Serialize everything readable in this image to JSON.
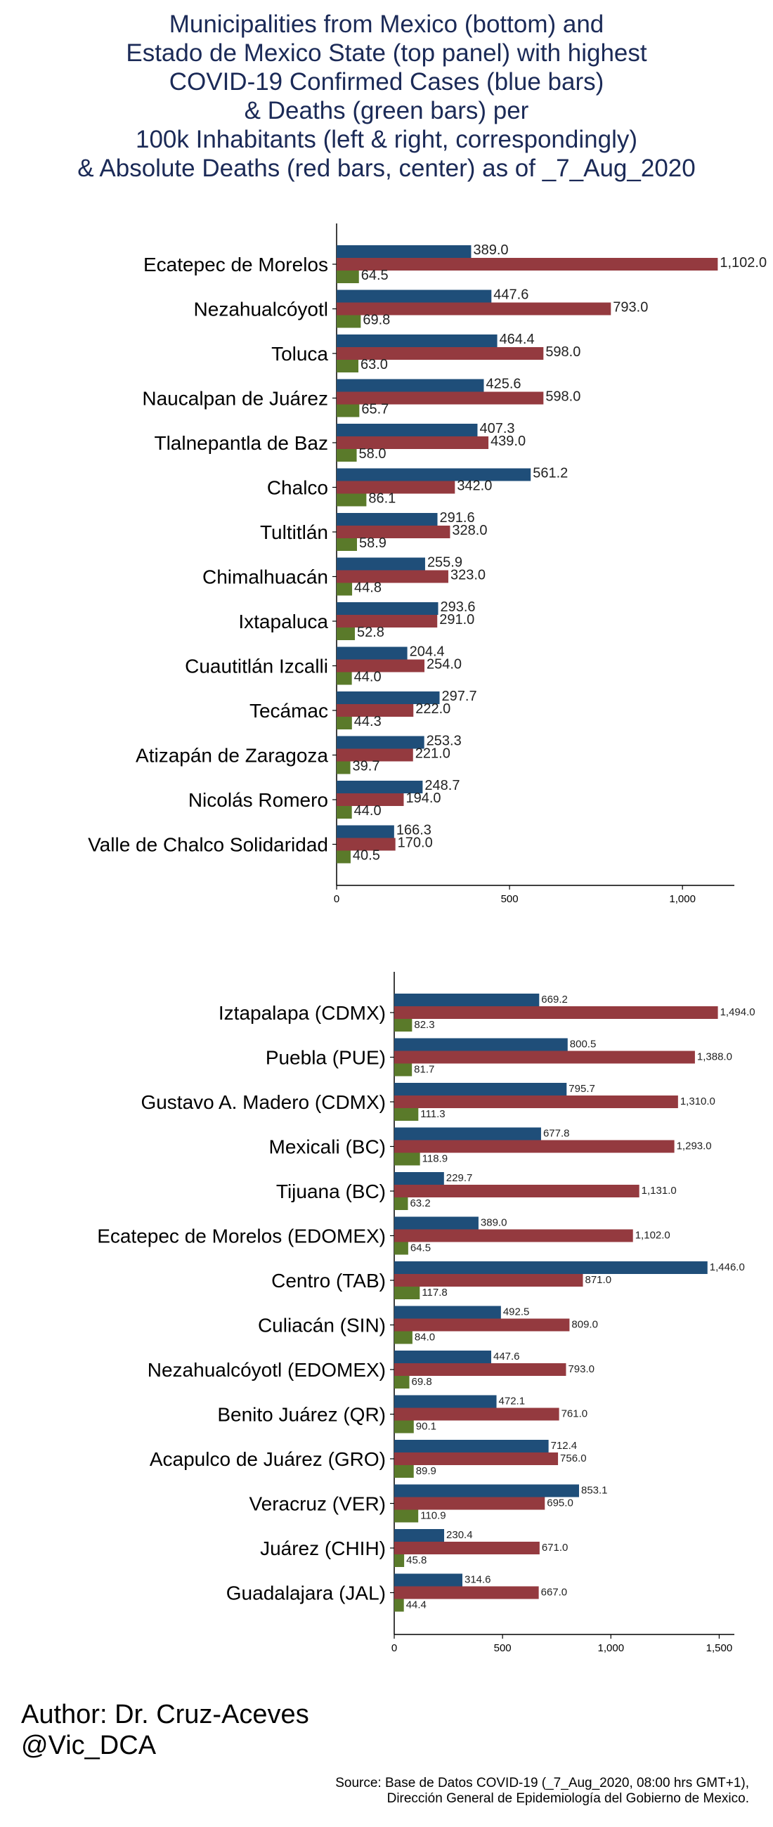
{
  "title_lines": [
    "Municipalities from Mexico (bottom) and",
    "Estado de Mexico State (top panel) with highest",
    "COVID-19 Confirmed Cases (blue bars)",
    "& Deaths (green bars) per",
    "100k Inhabitants (left & right, correspondingly)",
    "& Absolute Deaths (red bars, center) as of _7_Aug_2020"
  ],
  "colors": {
    "cases": "#1f4e79",
    "deaths_abs": "#943a3f",
    "deaths_rate": "#5a7a2a",
    "title": "#1b2a57"
  },
  "chart_data": [
    {
      "type": "bar",
      "orientation": "horizontal",
      "panel": "top",
      "xlim": [
        0,
        1150
      ],
      "x_ticks": [
        0,
        500,
        1000
      ],
      "x_tick_labels": [
        "0",
        "500",
        "1,000"
      ],
      "categories": [
        "Ecatepec de Morelos",
        "Nezahualcóyotl",
        "Toluca",
        "Naucalpan de Juárez",
        "Tlalnepantla de Baz",
        "Chalco",
        "Tultitlán",
        "Chimalhuacán",
        "Ixtapaluca",
        "Cuautitlán Izcalli",
        "Tecámac",
        "Atizapán de Zaragoza",
        "Nicolás Romero",
        "Valle de Chalco Solidaridad"
      ],
      "series": [
        {
          "values": [
            389.0,
            447.6,
            464.4,
            425.6,
            407.3,
            561.2,
            291.6,
            255.9,
            293.6,
            204.4,
            297.7,
            253.3,
            248.7,
            166.3
          ],
          "labels": [
            "389.0",
            "447.6",
            "464.4",
            "425.6",
            "407.3",
            "561.2",
            "291.6",
            "255.9",
            "293.6",
            "204.4",
            "297.7",
            "253.3",
            "248.7",
            "166.3"
          ]
        },
        {
          "values": [
            1102.0,
            793.0,
            598.0,
            598.0,
            439.0,
            342.0,
            328.0,
            323.0,
            291.0,
            254.0,
            222.0,
            221.0,
            194.0,
            170.0
          ],
          "labels": [
            "1,102.0",
            "793.0",
            "598.0",
            "598.0",
            "439.0",
            "342.0",
            "328.0",
            "323.0",
            "291.0",
            "254.0",
            "222.0",
            "221.0",
            "194.0",
            "170.0"
          ]
        },
        {
          "values": [
            64.5,
            69.8,
            63.0,
            65.7,
            58.0,
            86.1,
            58.9,
            44.8,
            52.8,
            44.0,
            44.3,
            39.7,
            44.0,
            40.5
          ],
          "labels": [
            "64.5",
            "69.8",
            "63.0",
            "65.7",
            "58.0",
            "86.1",
            "58.9",
            "44.8",
            "52.8",
            "44.0",
            "44.3",
            "39.7",
            "44.0",
            "40.5"
          ]
        }
      ]
    },
    {
      "type": "bar",
      "orientation": "horizontal",
      "panel": "bottom",
      "xlim": [
        0,
        1570
      ],
      "x_ticks": [
        0,
        500,
        1000,
        1500
      ],
      "x_tick_labels": [
        "0",
        "500",
        "1,000",
        "1,500"
      ],
      "categories": [
        "Iztapalapa (CDMX)",
        "Puebla (PUE)",
        "Gustavo A. Madero (CDMX)",
        "Mexicali (BC)",
        "Tijuana (BC)",
        "Ecatepec de Morelos (EDOMEX)",
        "Centro (TAB)",
        "Culiacán (SIN)",
        "Nezahualcóyotl (EDOMEX)",
        "Benito Juárez (QR)",
        "Acapulco de Juárez (GRO)",
        "Veracruz (VER)",
        "Juárez (CHIH)",
        "Guadalajara (JAL)"
      ],
      "series": [
        {
          "values": [
            669.2,
            800.5,
            795.7,
            677.8,
            229.7,
            389.0,
            1446.0,
            492.5,
            447.6,
            472.1,
            712.4,
            853.1,
            230.4,
            314.6
          ],
          "labels": [
            "669.2",
            "800.5",
            "795.7",
            "677.8",
            "229.7",
            "389.0",
            "1,446.0",
            "492.5",
            "447.6",
            "472.1",
            "712.4",
            "853.1",
            "230.4",
            "314.6"
          ]
        },
        {
          "values": [
            1494.0,
            1388.0,
            1310.0,
            1293.0,
            1131.0,
            1102.0,
            871.0,
            809.0,
            793.0,
            761.0,
            756.0,
            695.0,
            671.0,
            667.0
          ],
          "labels": [
            "1,494.0",
            "1,388.0",
            "1,310.0",
            "1,293.0",
            "1,131.0",
            "1,102.0",
            "871.0",
            "809.0",
            "793.0",
            "761.0",
            "756.0",
            "695.0",
            "671.0",
            "667.0"
          ]
        },
        {
          "values": [
            82.3,
            81.7,
            111.3,
            118.9,
            63.2,
            64.5,
            117.8,
            84.0,
            69.8,
            90.1,
            89.9,
            110.9,
            45.8,
            44.4
          ],
          "labels": [
            "82.3",
            "81.7",
            "111.3",
            "118.9",
            "63.2",
            "64.5",
            "117.8",
            "84.0",
            "69.8",
            "90.1",
            "89.9",
            "110.9",
            "45.8",
            "44.4"
          ]
        }
      ]
    }
  ],
  "author_lines": [
    "Author: Dr. Cruz-Aceves",
    "@Vic_DCA"
  ],
  "source_lines": [
    "Source: Base de Datos COVID-19 (_7_Aug_2020, 08:00 hrs GMT+1),",
    "Dirección General de Epidemiología del Gobierno de Mexico."
  ]
}
